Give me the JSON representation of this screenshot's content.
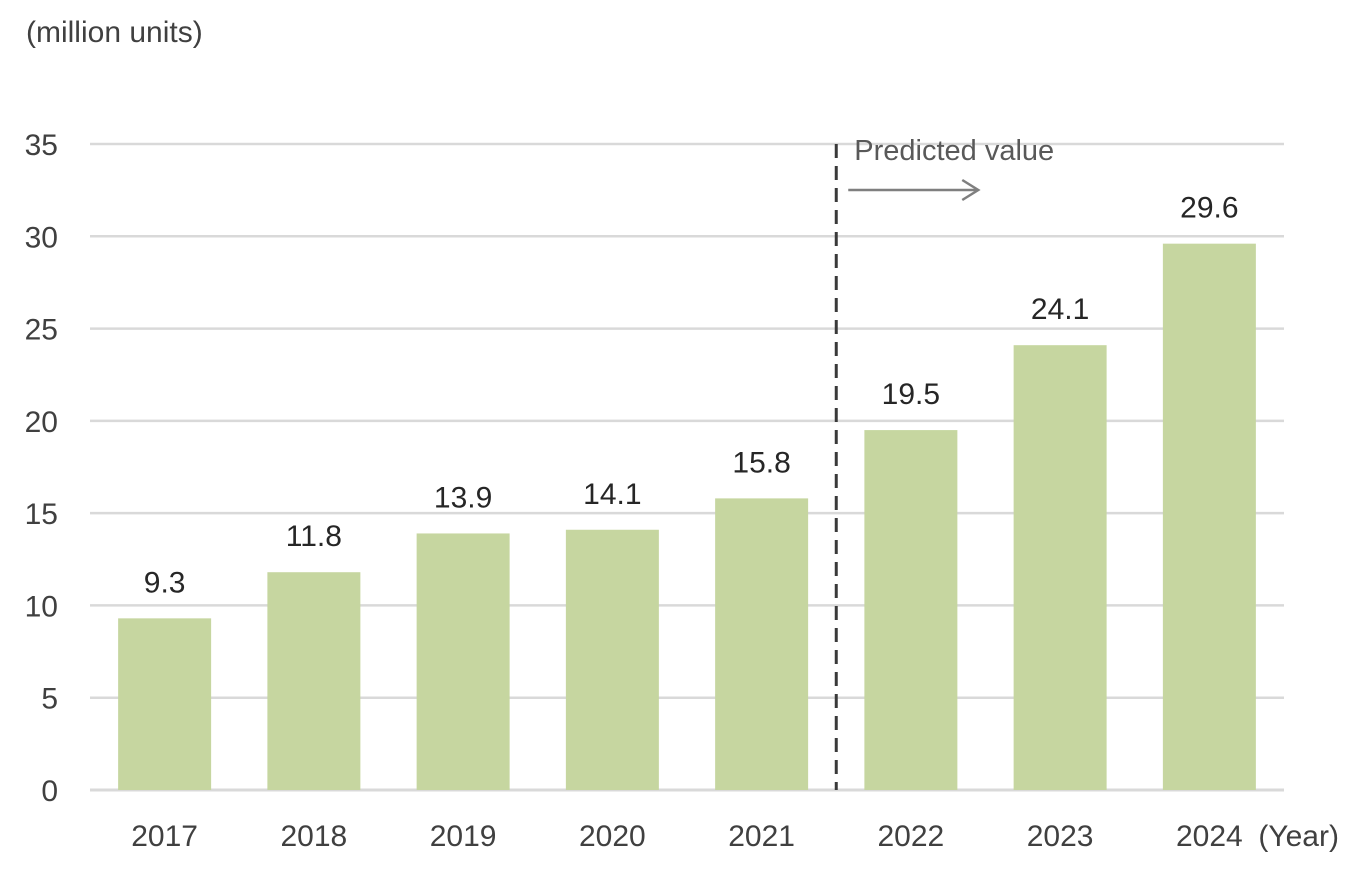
{
  "chart_data": {
    "type": "bar",
    "categories": [
      "2017",
      "2018",
      "2019",
      "2020",
      "2021",
      "2022",
      "2023",
      "2024"
    ],
    "values": [
      9.3,
      11.8,
      13.9,
      14.1,
      15.8,
      19.5,
      24.1,
      29.6
    ],
    "data_labels": [
      "9.3",
      "11.8",
      "13.9",
      "14.1",
      "15.8",
      "19.5",
      "24.1",
      "29.6"
    ],
    "ylabel": "(million units)",
    "xlabel": "(Year)",
    "ylim": [
      0,
      35
    ],
    "yticks": [
      "0",
      "5",
      "10",
      "15",
      "20",
      "25",
      "30",
      "35"
    ],
    "grid": true,
    "bar_color": "#c6d6a0",
    "annotation": {
      "text": "Predicted value",
      "divider_between": [
        "2021",
        "2022"
      ]
    }
  }
}
